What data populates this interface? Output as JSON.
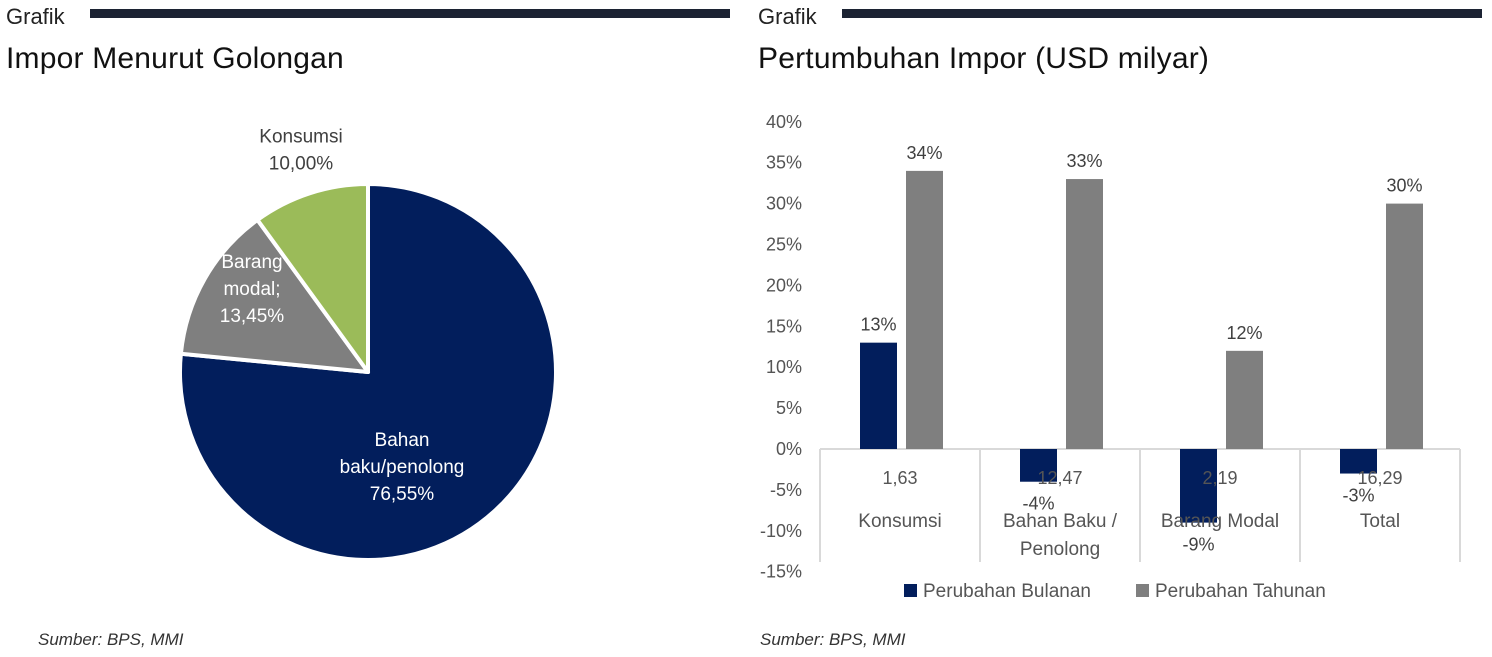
{
  "colors": {
    "navy": "#021e5c",
    "gray": "#7f7f7f",
    "green": "#9bbb59",
    "rule": "#1c2333",
    "axis": "#d9d9d9"
  },
  "left": {
    "section_label": "Grafik",
    "title": "Impor Menurut Golongan",
    "source": "Sumber: BPS, MMI"
  },
  "right": {
    "section_label": "Grafik",
    "title": "Pertumbuhan Impor (USD milyar)",
    "source": "Sumber: BPS, MMI"
  },
  "chart_data": [
    {
      "type": "pie",
      "title": "Impor Menurut Golongan",
      "slices": [
        {
          "label_lines": [
            "Bahan",
            "baku/penolong",
            "76,55%"
          ],
          "value": 76.55,
          "color": "#021e5c",
          "text_color": "#ffffff"
        },
        {
          "label_lines": [
            "Barang",
            "modal;",
            "13,45%"
          ],
          "value": 13.45,
          "color": "#7f7f7f",
          "text_color": "#ffffff"
        },
        {
          "label_lines": [
            "Konsumsi",
            "10,00%"
          ],
          "value": 10.0,
          "color": "#9bbb59",
          "text_color": "#404040"
        }
      ]
    },
    {
      "type": "bar",
      "title": "Pertumbuhan Impor (USD milyar)",
      "categories": [
        {
          "value_label": "1,63",
          "label_lines": [
            "Konsumsi"
          ]
        },
        {
          "value_label": "12,47",
          "label_lines": [
            "Bahan Baku /",
            "Penolong"
          ]
        },
        {
          "value_label": "2,19",
          "label_lines": [
            "Barang Modal"
          ]
        },
        {
          "value_label": "16,29",
          "label_lines": [
            "Total"
          ]
        }
      ],
      "series": [
        {
          "name": "Perubahan Bulanan",
          "color": "#021e5c",
          "values": [
            13,
            -4,
            -9,
            -3
          ],
          "data_labels": [
            "13%",
            "-4%",
            "-9%",
            "-3%"
          ]
        },
        {
          "name": "Perubahan Tahunan",
          "color": "#7f7f7f",
          "values": [
            34,
            33,
            12,
            30
          ],
          "data_labels": [
            "34%",
            "33%",
            "12%",
            "30%"
          ]
        }
      ],
      "y_ticks": [
        "40%",
        "35%",
        "30%",
        "25%",
        "20%",
        "15%",
        "10%",
        "5%",
        "0%",
        "-5%",
        "-10%",
        "-15%"
      ],
      "ylim": [
        -15,
        40
      ],
      "legend_position": "bottom",
      "grid": false
    }
  ]
}
